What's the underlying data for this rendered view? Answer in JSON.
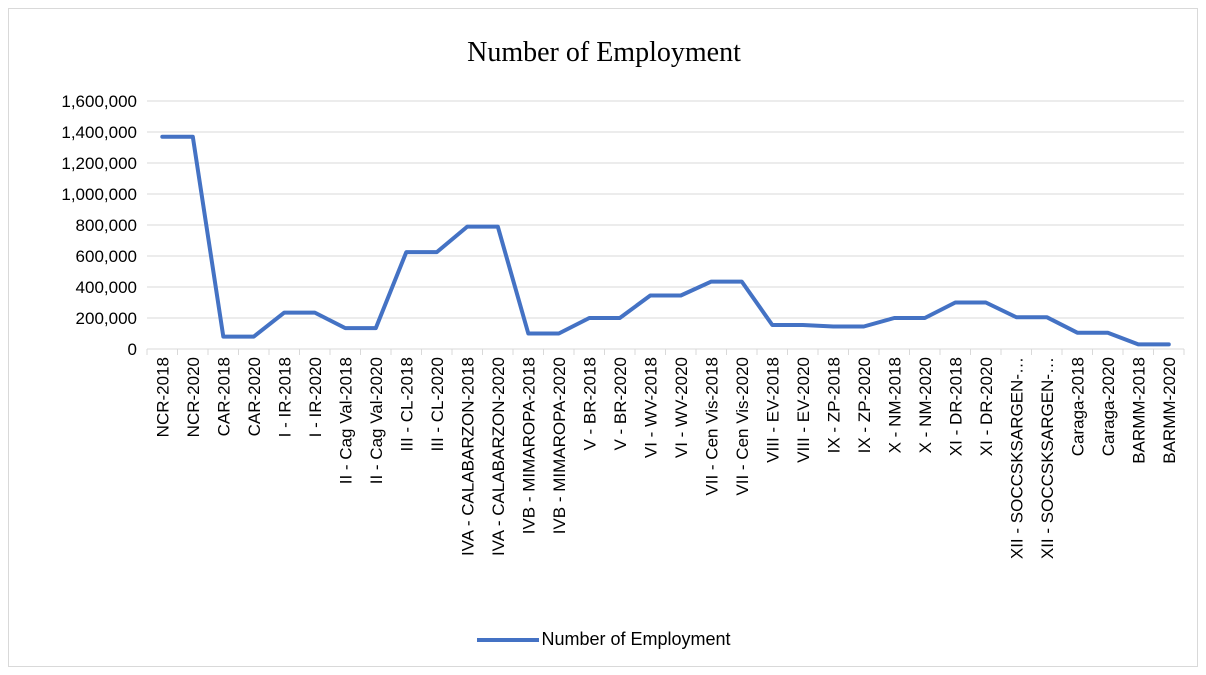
{
  "chart_data": {
    "type": "line",
    "title": "Number of Employment",
    "xlabel": "",
    "ylabel": "",
    "ylim": [
      0,
      1600000
    ],
    "yticks": [
      0,
      200000,
      400000,
      600000,
      800000,
      1000000,
      1200000,
      1400000,
      1600000
    ],
    "ytick_labels": [
      "0",
      "200,000",
      "400,000",
      "600,000",
      "800,000",
      "1,000,000",
      "1,200,000",
      "1,400,000",
      "1,600,000"
    ],
    "grid": true,
    "legend_position": "bottom",
    "categories": [
      "NCR-2018",
      "NCR-2020",
      "CAR-2018",
      "CAR-2020",
      "I - IR-2018",
      "I - IR-2020",
      "II - Cag Val-2018",
      "II - Cag Val-2020",
      "III - CL-2018",
      "III - CL-2020",
      "IVA - CALABARZON-2018",
      "IVA - CALABARZON-2020",
      "IVB - MIMAROPA-2018",
      "IVB - MIMAROPA-2020",
      "V - BR-2018",
      "V - BR-2020",
      "VI - WV-2018",
      "VI - WV-2020",
      "VII - Cen Vis-2018",
      "VII - Cen Vis-2020",
      "VIII - EV-2018",
      "VIII - EV-2020",
      "IX - ZP-2018",
      "IX - ZP-2020",
      "X - NM-2018",
      "X - NM-2020",
      "XI - DR-2018",
      "XI - DR-2020",
      "XII - SOCCSKSARGEN-…",
      "XII - SOCCSKSARGEN-…",
      "Caraga-2018",
      "Caraga-2020",
      "BARMM-2018",
      "BARMM-2020"
    ],
    "series": [
      {
        "name": "Number of Employment",
        "color": "#4472c4",
        "values": [
          1370000,
          1370000,
          80000,
          80000,
          235000,
          235000,
          135000,
          135000,
          625000,
          625000,
          790000,
          790000,
          100000,
          100000,
          200000,
          200000,
          345000,
          345000,
          435000,
          435000,
          155000,
          155000,
          145000,
          145000,
          200000,
          200000,
          300000,
          300000,
          205000,
          205000,
          105000,
          105000,
          30000,
          30000
        ]
      }
    ]
  }
}
